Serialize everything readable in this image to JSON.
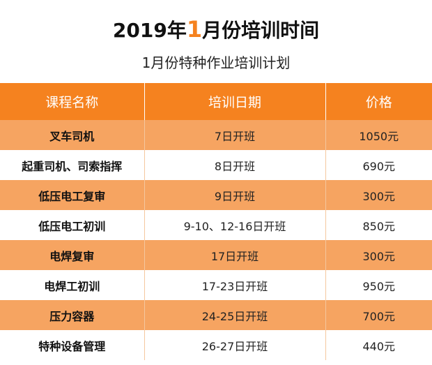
{
  "header": {
    "title_prefix": "2019年",
    "title_highlight": "1",
    "title_suffix": "月份培训时间",
    "subtitle": "1月份特种作业培训计划"
  },
  "table": {
    "columns": [
      "课程名称",
      "培训日期",
      "价格"
    ],
    "rows": [
      {
        "course": "叉车司机",
        "date": "7日开班",
        "price": "1050元"
      },
      {
        "course": "起重司机、司索指挥",
        "date": "8日开班",
        "price": "690元"
      },
      {
        "course": "低压电工复审",
        "date": "9日开班",
        "price": "300元"
      },
      {
        "course": "低压电工初训",
        "date": "9-10、12-16日开班",
        "price": "850元"
      },
      {
        "course": "电焊复审",
        "date": "17日开班",
        "price": "300元"
      },
      {
        "course": "电焊工初训",
        "date": "17-23日开班",
        "price": "950元"
      },
      {
        "course": "压力容器",
        "date": "24-25日开班",
        "price": "700元"
      },
      {
        "course": "特种设备管理",
        "date": "26-27日开班",
        "price": "440元"
      }
    ]
  },
  "colors": {
    "accent": "#f5821f",
    "row_alt": "#f6a461"
  }
}
